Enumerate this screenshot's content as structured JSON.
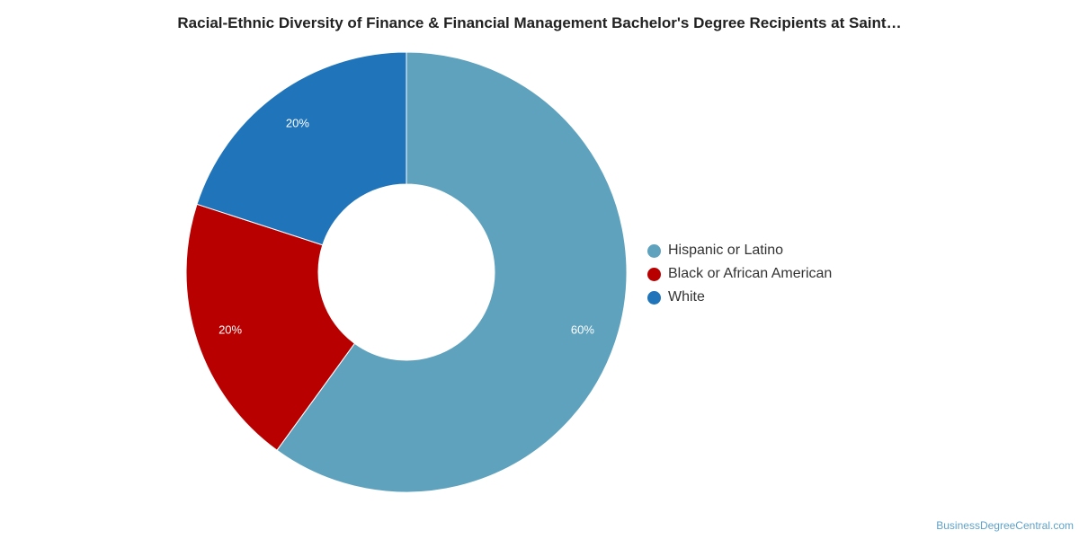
{
  "chart_data": {
    "type": "pie",
    "donut": true,
    "title": "Racial-Ethnic Diversity of Finance & Financial Management Bachelor's Degree Recipients at Saint…",
    "slices": [
      {
        "label": "Hispanic or Latino",
        "value": 60,
        "display": "60%",
        "color": "#5fa2be"
      },
      {
        "label": "Black or African American",
        "value": 20,
        "display": "20%",
        "color": "#b90000"
      },
      {
        "label": "White",
        "value": 20,
        "display": "20%",
        "color": "#1f74ba"
      }
    ],
    "legend_position": "right"
  },
  "watermark": "BusinessDegreeCentral.com"
}
